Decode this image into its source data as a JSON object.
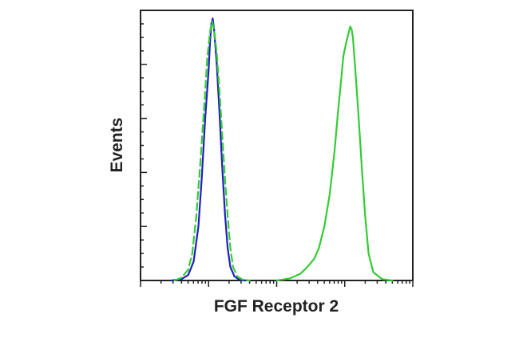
{
  "chart_data": {
    "type": "line",
    "title": "",
    "xlabel": "FGF Receptor 2",
    "ylabel": "Events",
    "x_scale": "log",
    "xlim": [
      -1.0,
      3.0
    ],
    "ylim": [
      0,
      100
    ],
    "x_major_ticks": [
      0,
      1,
      2,
      3
    ],
    "x_minor_per_decade": 9,
    "y_major_ticks": [
      0,
      20,
      40,
      60,
      80,
      100
    ],
    "y_minor_ticks": [
      5,
      10,
      15,
      25,
      30,
      35,
      45,
      50,
      55,
      65,
      70,
      75,
      85,
      90,
      95
    ],
    "grid": false,
    "legend": "none",
    "series": [
      {
        "color": "#1f1fbf",
        "dash": "solid",
        "points": [
          [
            -0.55,
            0
          ],
          [
            -0.4,
            0.5
          ],
          [
            -0.3,
            2
          ],
          [
            -0.22,
            7
          ],
          [
            -0.15,
            20
          ],
          [
            -0.1,
            38
          ],
          [
            -0.05,
            60
          ],
          [
            0.0,
            78
          ],
          [
            0.02,
            88
          ],
          [
            0.04,
            95
          ],
          [
            0.06,
            97
          ],
          [
            0.08,
            93
          ],
          [
            0.12,
            80
          ],
          [
            0.16,
            62
          ],
          [
            0.2,
            42
          ],
          [
            0.24,
            25
          ],
          [
            0.28,
            12
          ],
          [
            0.32,
            5
          ],
          [
            0.38,
            1.5
          ],
          [
            0.45,
            0.3
          ],
          [
            0.55,
            0
          ]
        ]
      },
      {
        "color": "#33cc33",
        "dash": "dashed",
        "points": [
          [
            -0.5,
            0
          ],
          [
            -0.4,
            1
          ],
          [
            -0.3,
            4
          ],
          [
            -0.24,
            10
          ],
          [
            -0.18,
            24
          ],
          [
            -0.12,
            44
          ],
          [
            -0.06,
            66
          ],
          [
            -0.02,
            82
          ],
          [
            0.02,
            92
          ],
          [
            0.05,
            96
          ],
          [
            0.08,
            93
          ],
          [
            0.12,
            84
          ],
          [
            0.16,
            70
          ],
          [
            0.2,
            54
          ],
          [
            0.24,
            38
          ],
          [
            0.28,
            24
          ],
          [
            0.32,
            12
          ],
          [
            0.36,
            5
          ],
          [
            0.42,
            1.5
          ],
          [
            0.5,
            0.3
          ],
          [
            0.6,
            0
          ]
        ]
      },
      {
        "color": "#33cc33",
        "dash": "solid",
        "points": [
          [
            1.0,
            0
          ],
          [
            1.2,
            0.8
          ],
          [
            1.35,
            2.5
          ],
          [
            1.45,
            5
          ],
          [
            1.55,
            8
          ],
          [
            1.62,
            12
          ],
          [
            1.7,
            20
          ],
          [
            1.78,
            32
          ],
          [
            1.85,
            48
          ],
          [
            1.9,
            62
          ],
          [
            1.95,
            75
          ],
          [
            1.98,
            83
          ],
          [
            2.02,
            88
          ],
          [
            2.05,
            91
          ],
          [
            2.08,
            94
          ],
          [
            2.1,
            93
          ],
          [
            2.12,
            90
          ],
          [
            2.15,
            80
          ],
          [
            2.2,
            62
          ],
          [
            2.25,
            42
          ],
          [
            2.3,
            24
          ],
          [
            2.35,
            10
          ],
          [
            2.42,
            3
          ],
          [
            2.55,
            0.5
          ],
          [
            2.7,
            0
          ]
        ]
      }
    ]
  }
}
